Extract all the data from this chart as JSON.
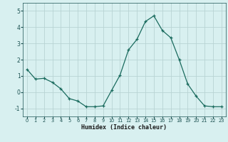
{
  "x": [
    0,
    1,
    2,
    3,
    4,
    5,
    6,
    7,
    8,
    9,
    10,
    11,
    12,
    13,
    14,
    15,
    16,
    17,
    18,
    19,
    20,
    21,
    22,
    23
  ],
  "y": [
    1.4,
    0.8,
    0.85,
    0.6,
    0.2,
    -0.4,
    -0.55,
    -0.9,
    -0.9,
    -0.85,
    0.1,
    1.05,
    2.6,
    3.25,
    4.35,
    4.7,
    3.8,
    3.35,
    2.0,
    0.5,
    -0.25,
    -0.85,
    -0.9,
    -0.9
  ],
  "xlabel": "Humidex (Indice chaleur)",
  "ylabel": "",
  "ylim": [
    -1.5,
    5.5
  ],
  "xlim": [
    -0.5,
    23.5
  ],
  "bg_color": "#d8f0f0",
  "line_color": "#1a6b5e",
  "grid_color": "#b8d4d4",
  "tick_label_color": "#1a5050",
  "xlabel_color": "#1a1a1a",
  "yticks": [
    -1,
    0,
    1,
    2,
    3,
    4,
    5
  ],
  "xticks": [
    0,
    1,
    2,
    3,
    4,
    5,
    6,
    7,
    8,
    9,
    10,
    11,
    12,
    13,
    14,
    15,
    16,
    17,
    18,
    19,
    20,
    21,
    22,
    23
  ]
}
